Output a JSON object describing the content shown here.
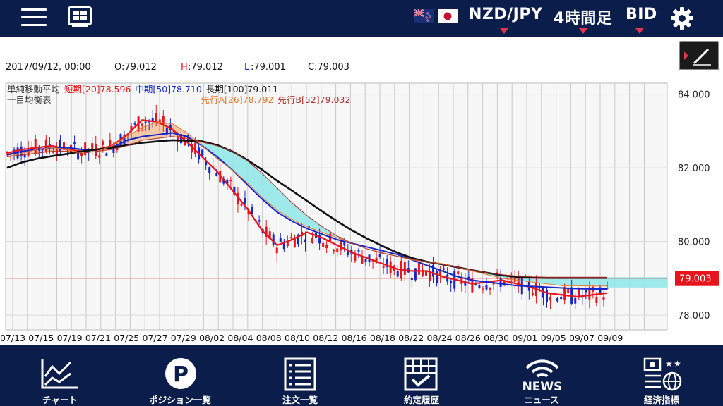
{
  "header": {
    "pair": "NZD/JPY",
    "timeframe": "4時間足",
    "price_type": "BID"
  },
  "info": {
    "datetime": "2017/09/12, 00:00",
    "open": "O:79.012",
    "high_prefix": "H",
    "high_value": ":79.012",
    "low_prefix": "L",
    "low_value": ":79.001",
    "close": "C:79.003"
  },
  "legend": {
    "sma_title": "単純移動平均",
    "sma_short": "短期[20]78.596",
    "sma_mid": "中期[50]78.710",
    "sma_long": "長期[100]79.011",
    "ichimoku_title": "一目均衡表",
    "span_a": "先行A[26]78.792",
    "span_b": "先行B[52]79.032"
  },
  "chart_data": {
    "type": "line",
    "y_tick_labels": [
      "84.000",
      "82.000",
      "80.000",
      "78.000"
    ],
    "ylim": [
      77.6,
      84.3
    ],
    "current_price": "79.003",
    "x_tick_labels": [
      "07/13",
      "07/15",
      "07/19",
      "07/21",
      "07/25",
      "07/27",
      "07/29",
      "08/02",
      "08/04",
      "08/08",
      "08/10",
      "08/12",
      "08/16",
      "08/18",
      "08/22",
      "08/24",
      "08/26",
      "08/30",
      "09/01",
      "09/05",
      "09/07",
      "09/09"
    ],
    "series": [
      {
        "name": "短期[20]",
        "color": "#e8141b",
        "values": [
          82.4,
          82.5,
          82.55,
          82.6,
          82.5,
          82.45,
          82.5,
          82.6,
          82.9,
          83.3,
          83.25,
          83.05,
          82.7,
          82.3,
          81.9,
          81.4,
          80.9,
          80.3,
          79.9,
          80.05,
          80.25,
          80.1,
          79.9,
          79.7,
          79.55,
          79.4,
          79.25,
          79.2,
          79.2,
          79.05,
          78.95,
          78.85,
          78.9,
          78.95,
          78.85,
          78.75,
          78.6,
          78.55,
          78.5,
          78.55,
          78.6
        ]
      },
      {
        "name": "中期[50]",
        "color": "#1526c8",
        "values": [
          82.35,
          82.45,
          82.5,
          82.55,
          82.55,
          82.5,
          82.5,
          82.55,
          82.75,
          82.85,
          82.9,
          82.95,
          82.85,
          82.6,
          82.3,
          81.95,
          81.55,
          81.15,
          80.8,
          80.55,
          80.35,
          80.2,
          80.05,
          79.95,
          79.85,
          79.75,
          79.65,
          79.5,
          79.35,
          79.2,
          79.05,
          78.95,
          78.9,
          78.85,
          78.8,
          78.78,
          78.76,
          78.74,
          78.72,
          78.71,
          78.71
        ]
      },
      {
        "name": "長期[100]",
        "color": "#111111",
        "values": [
          82.0,
          82.15,
          82.25,
          82.32,
          82.38,
          82.45,
          82.5,
          82.55,
          82.62,
          82.68,
          82.72,
          82.75,
          82.74,
          82.72,
          82.62,
          82.45,
          82.22,
          81.95,
          81.65,
          81.38,
          81.1,
          80.82,
          80.55,
          80.3,
          80.08,
          79.88,
          79.7,
          79.55,
          79.45,
          79.38,
          79.3,
          79.22,
          79.15,
          79.08,
          79.04,
          79.02,
          79.01,
          79.01,
          79.01,
          79.01,
          79.01
        ]
      },
      {
        "name": "先行A[26]",
        "color": "#e8782a",
        "values": [
          82.3,
          82.4,
          82.5,
          82.55,
          82.5,
          82.4,
          82.45,
          82.6,
          82.85,
          83.1,
          83.25,
          83.2,
          82.95,
          82.6,
          82.25,
          81.95,
          81.6,
          81.2,
          80.85,
          80.6,
          80.4,
          80.25,
          80.1,
          79.95,
          79.8,
          79.7,
          79.6,
          79.5,
          79.45,
          79.4,
          79.3,
          79.2,
          79.1,
          79.0,
          78.95,
          78.9,
          78.85,
          78.8,
          78.8,
          78.79,
          78.79
        ]
      },
      {
        "name": "先行B[52]",
        "color": "#b0302a",
        "values": [
          82.3,
          82.35,
          82.4,
          82.45,
          82.45,
          82.4,
          82.45,
          82.5,
          82.6,
          82.75,
          82.8,
          82.85,
          82.8,
          82.7,
          82.6,
          82.45,
          82.2,
          81.85,
          81.45,
          81.05,
          80.7,
          80.4,
          80.15,
          79.95,
          79.8,
          79.68,
          79.6,
          79.52,
          79.45,
          79.38,
          79.3,
          79.22,
          79.15,
          79.1,
          79.06,
          79.04,
          79.03,
          79.03,
          79.03,
          79.03,
          79.03
        ]
      }
    ]
  },
  "nav": [
    {
      "label": "チャート",
      "icon": "chart-icon"
    },
    {
      "label": "ポジション一覧",
      "icon": "position-icon"
    },
    {
      "label": "注文一覧",
      "icon": "order-list-icon"
    },
    {
      "label": "約定履歴",
      "icon": "execution-history-icon"
    },
    {
      "label": "ニュース",
      "icon": "news-icon",
      "icon_text": "NEWS"
    },
    {
      "label": "経済指標",
      "icon": "economic-indicator-icon"
    }
  ]
}
